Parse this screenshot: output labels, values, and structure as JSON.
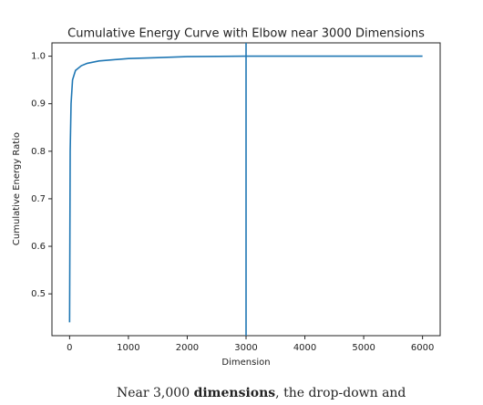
{
  "chart_data": {
    "type": "line",
    "title": "Cumulative Energy Curve with Elbow near 3000 Dimensions",
    "xlabel": "Dimension",
    "ylabel": "Cumulative Energy Ratio",
    "x": [
      0,
      10,
      25,
      50,
      100,
      200,
      300,
      500,
      1000,
      1500,
      2000,
      3000,
      4000,
      5000,
      6000
    ],
    "series": [
      {
        "color": "#1f77b4",
        "values": [
          0.44,
          0.8,
          0.9,
          0.95,
          0.97,
          0.98,
          0.985,
          0.99,
          0.995,
          0.997,
          0.999,
          1.0,
          1.0,
          1.0,
          1.0
        ]
      }
    ],
    "vline": 3000,
    "xlim": [
      -300,
      6300
    ],
    "ylim": [
      0.412,
      1.028
    ],
    "xticks": [
      0,
      1000,
      2000,
      3000,
      4000,
      5000,
      6000
    ],
    "yticks": [
      0.5,
      0.6,
      0.7,
      0.8,
      0.9,
      {
        "value": 1,
        "label": "1.0"
      }
    ]
  },
  "caption": [
    "Near 3,000 ",
    "dimensions",
    ", the drop-down and"
  ]
}
